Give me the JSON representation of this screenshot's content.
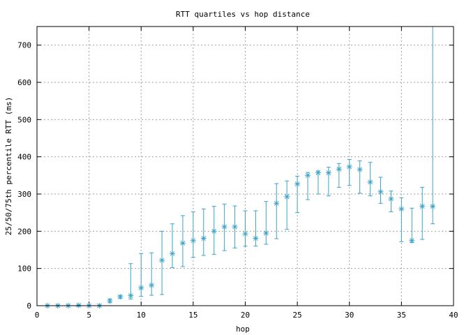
{
  "chart_data": {
    "type": "scatter",
    "title": "RTT quartiles vs hop distance",
    "xlabel": "hop",
    "ylabel": "25/50/75th percentile RTT (ms)",
    "xlim": [
      0,
      40
    ],
    "ylim": [
      0,
      750
    ],
    "xticks": [
      0,
      5,
      10,
      15,
      20,
      25,
      30,
      35,
      40
    ],
    "yticks": [
      0,
      100,
      200,
      300,
      400,
      500,
      600,
      700
    ],
    "grid": true,
    "color": "#3ba3c8",
    "series": [
      {
        "marker": "asterisk",
        "error_bars": "25th-75th percentile",
        "points": [
          {
            "x": 1,
            "low": 0,
            "median": 0,
            "high": 1
          },
          {
            "x": 2,
            "low": 0,
            "median": 0,
            "high": 1
          },
          {
            "x": 3,
            "low": 0,
            "median": 0,
            "high": 1
          },
          {
            "x": 4,
            "low": 0,
            "median": 1,
            "high": 2
          },
          {
            "x": 5,
            "low": 0,
            "median": 0,
            "high": 1
          },
          {
            "x": 6,
            "low": 0,
            "median": 0,
            "high": 1
          },
          {
            "x": 7,
            "low": 8,
            "median": 13,
            "high": 18
          },
          {
            "x": 8,
            "low": 20,
            "median": 24,
            "high": 27
          },
          {
            "x": 9,
            "low": 18,
            "median": 27,
            "high": 113
          },
          {
            "x": 10,
            "low": 25,
            "median": 48,
            "high": 140
          },
          {
            "x": 11,
            "low": 28,
            "median": 55,
            "high": 142
          },
          {
            "x": 12,
            "low": 30,
            "median": 122,
            "high": 200
          },
          {
            "x": 13,
            "low": 102,
            "median": 140,
            "high": 220
          },
          {
            "x": 14,
            "low": 105,
            "median": 168,
            "high": 242
          },
          {
            "x": 15,
            "low": 130,
            "median": 175,
            "high": 252
          },
          {
            "x": 16,
            "low": 135,
            "median": 181,
            "high": 260
          },
          {
            "x": 17,
            "low": 138,
            "median": 200,
            "high": 267
          },
          {
            "x": 18,
            "low": 148,
            "median": 212,
            "high": 273
          },
          {
            "x": 19,
            "low": 155,
            "median": 212,
            "high": 268
          },
          {
            "x": 20,
            "low": 160,
            "median": 193,
            "high": 255
          },
          {
            "x": 21,
            "low": 160,
            "median": 181,
            "high": 255
          },
          {
            "x": 22,
            "low": 165,
            "median": 195,
            "high": 280
          },
          {
            "x": 23,
            "low": 180,
            "median": 275,
            "high": 328
          },
          {
            "x": 24,
            "low": 205,
            "median": 293,
            "high": 335
          },
          {
            "x": 25,
            "low": 250,
            "median": 327,
            "high": 348
          },
          {
            "x": 26,
            "low": 285,
            "median": 350,
            "high": 358
          },
          {
            "x": 27,
            "low": 300,
            "median": 357,
            "high": 362
          },
          {
            "x": 28,
            "low": 295,
            "median": 357,
            "high": 372
          },
          {
            "x": 29,
            "low": 318,
            "median": 367,
            "high": 382
          },
          {
            "x": 30,
            "low": 323,
            "median": 373,
            "high": 393
          },
          {
            "x": 31,
            "low": 302,
            "median": 366,
            "high": 389
          },
          {
            "x": 32,
            "low": 295,
            "median": 332,
            "high": 385
          },
          {
            "x": 33,
            "low": 275,
            "median": 306,
            "high": 345
          },
          {
            "x": 34,
            "low": 252,
            "median": 287,
            "high": 308
          },
          {
            "x": 35,
            "low": 172,
            "median": 260,
            "high": 290
          },
          {
            "x": 36,
            "low": 170,
            "median": 175,
            "high": 262
          },
          {
            "x": 37,
            "low": 178,
            "median": 267,
            "high": 318
          },
          {
            "x": 38,
            "low": 220,
            "median": 267,
            "high": 750
          }
        ]
      }
    ]
  }
}
